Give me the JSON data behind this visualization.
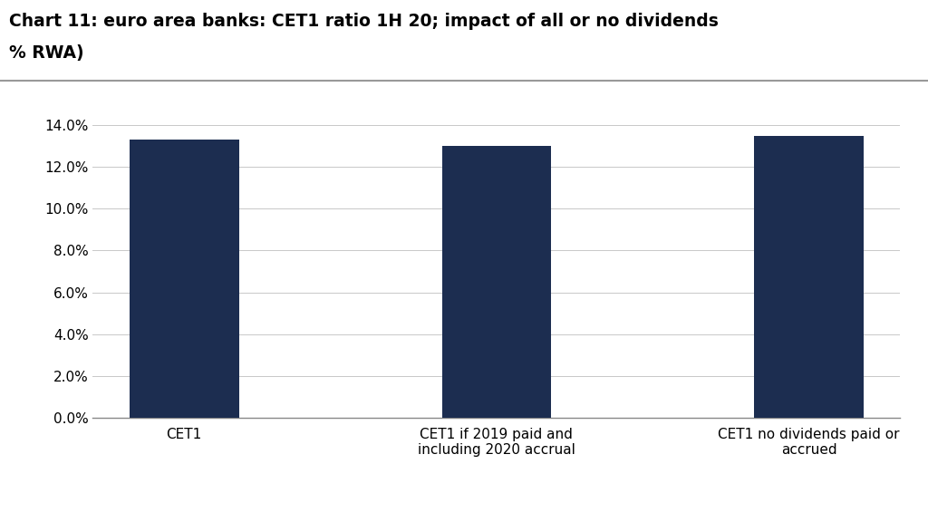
{
  "title_line1": "Chart 11: euro area banks: CET1 ratio 1H 20; impact of all or no dividends",
  "title_line2": "% RWA)",
  "categories": [
    "CET1",
    "CET1 if 2019 paid and\nincluding 2020 accrual",
    "CET1 no dividends paid or\naccrued"
  ],
  "values": [
    0.133,
    0.13,
    0.135
  ],
  "bar_color": "#1c2d50",
  "ylim": [
    0,
    0.15
  ],
  "yticks": [
    0.0,
    0.02,
    0.04,
    0.06,
    0.08,
    0.1,
    0.12,
    0.14
  ],
  "ytick_labels": [
    "0.0%",
    "2.0%",
    "4.0%",
    "6.0%",
    "8.0%",
    "10.0%",
    "12.0%",
    "14.0%"
  ],
  "background_color": "#ffffff",
  "title_fontsize": 13.5,
  "tick_fontsize": 11,
  "xlabel_fontsize": 11,
  "grid_color": "#c8c8c8",
  "bar_width": 0.35,
  "separator_color": "#999999"
}
